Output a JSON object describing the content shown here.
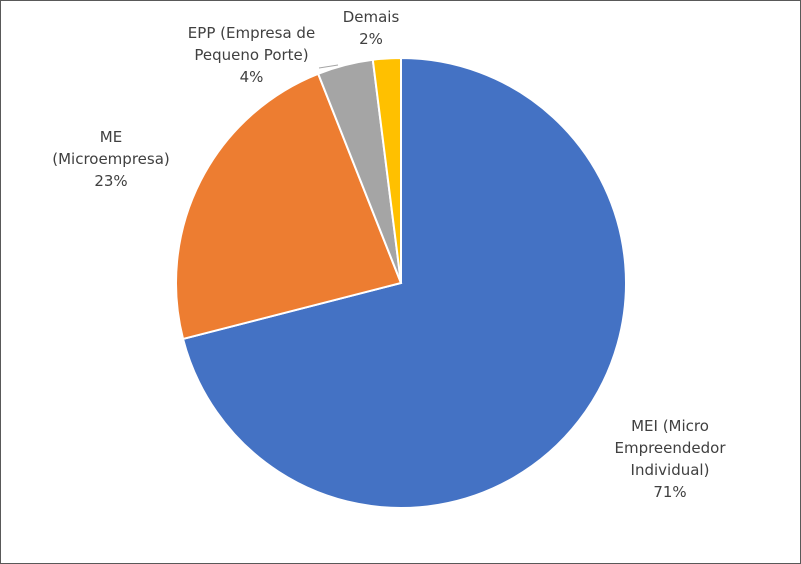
{
  "chart_data": {
    "type": "pie",
    "slices": [
      {
        "label_lines": [
          "MEI (Micro",
          "Empreendedor",
          "Individual)"
        ],
        "value": 71,
        "value_label": "71%",
        "color": "#4472C4"
      },
      {
        "label_lines": [
          "ME",
          "(Microempresa)"
        ],
        "value": 23,
        "value_label": "23%",
        "color": "#ED7D31"
      },
      {
        "label_lines": [
          "EPP (Empresa de",
          "Pequeno Porte)"
        ],
        "value": 4,
        "value_label": "4%",
        "color": "#A5A5A5"
      },
      {
        "label_lines": [
          "Demais"
        ],
        "value": 2,
        "value_label": "2%",
        "color": "#FFC000"
      }
    ],
    "start_angle": "12 o'clock",
    "direction": "clockwise",
    "legend": "none",
    "data_labels": "outside, category name and percentage"
  }
}
